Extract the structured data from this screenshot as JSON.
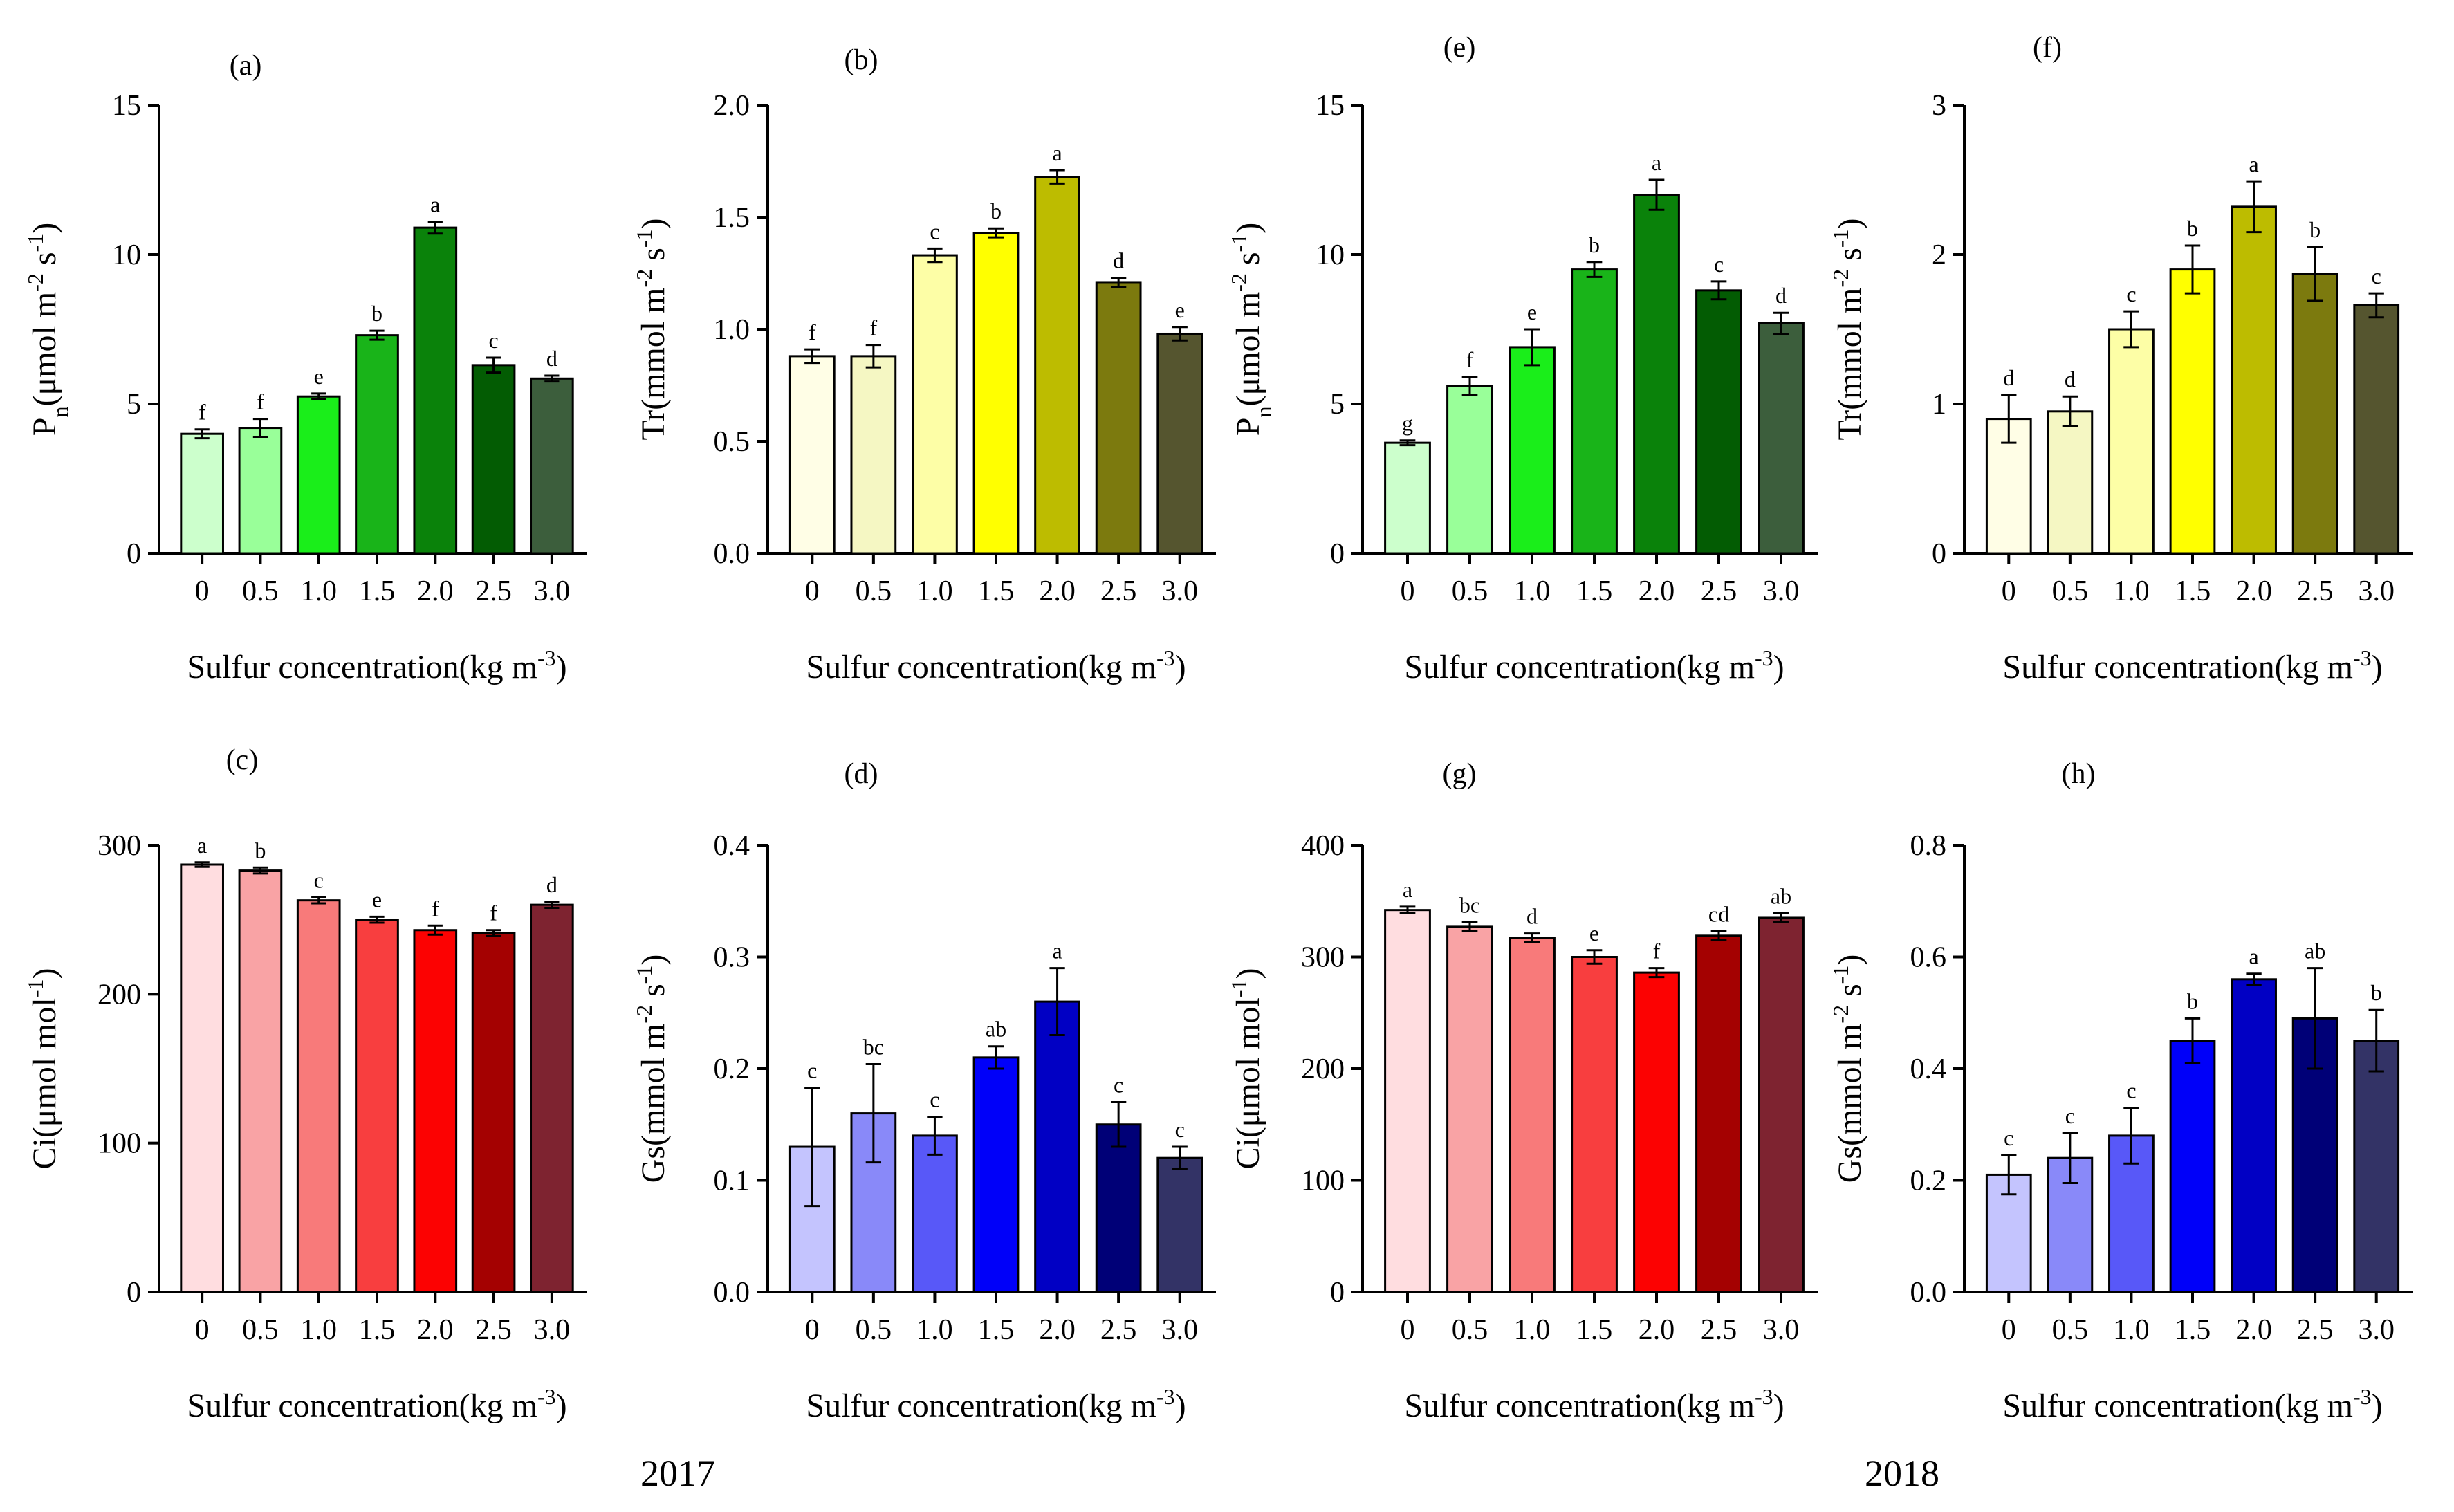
{
  "figure": {
    "year_labels": [
      "2017",
      "2018"
    ]
  },
  "chart_data": [
    {
      "id": "a",
      "panel_label": "(a)",
      "type": "bar",
      "categories": [
        "0",
        "0.5",
        "1.0",
        "1.5",
        "2.0",
        "2.5",
        "3.0"
      ],
      "values": [
        4.0,
        4.2,
        5.25,
        7.3,
        10.9,
        6.3,
        5.85
      ],
      "errors": [
        0.15,
        0.3,
        0.1,
        0.15,
        0.2,
        0.25,
        0.1
      ],
      "letters": [
        "f",
        "f",
        "e",
        "b",
        "a",
        "c",
        "d"
      ],
      "colors": [
        "#ccffcc",
        "#99ff99",
        "#1aee1a",
        "#19b419",
        "#0a820a",
        "#035c03",
        "#3c5e3c"
      ],
      "ylabel_main": "P",
      "ylabel_sub": "n",
      "ylabel_rest": "(μmol m",
      "ylabel_sup1": "-2",
      "ylabel_mid": " s",
      "ylabel_sup2": "-1",
      "ylabel_end": ")",
      "xlabel_main": "Sulfur concentration(kg m",
      "xlabel_sup": "-3",
      "xlabel_end": ")",
      "ylim": [
        0,
        15
      ],
      "yticks": [
        "0",
        "5",
        "10",
        "15"
      ],
      "ytick_values": [
        0,
        5,
        10,
        15
      ]
    },
    {
      "id": "b",
      "panel_label": "(b)",
      "type": "bar",
      "categories": [
        "0",
        "0.5",
        "1.0",
        "1.5",
        "2.0",
        "2.5",
        "3.0"
      ],
      "values": [
        0.88,
        0.88,
        1.33,
        1.43,
        1.68,
        1.21,
        0.98
      ],
      "errors": [
        0.03,
        0.05,
        0.03,
        0.02,
        0.03,
        0.02,
        0.03
      ],
      "letters": [
        "f",
        "f",
        "c",
        "b",
        "a",
        "d",
        "e"
      ],
      "colors": [
        "#fffee6",
        "#f5f7c3",
        "#fdfea6",
        "#ffff00",
        "#bdbc00",
        "#7c7a0e",
        "#55552f"
      ],
      "ylabel_main": "Tr",
      "ylabel_sub": "",
      "ylabel_rest": "(mmol m",
      "ylabel_sup1": "-2",
      "ylabel_mid": " s",
      "ylabel_sup2": "-1",
      "ylabel_end": ")",
      "xlabel_main": "Sulfur concentration(kg m",
      "xlabel_sup": "-3",
      "xlabel_end": ")",
      "ylim": [
        0,
        2.0
      ],
      "yticks": [
        "0.0",
        "0.5",
        "1.0",
        "1.5",
        "2.0"
      ],
      "ytick_values": [
        0,
        0.5,
        1.0,
        1.5,
        2.0
      ]
    },
    {
      "id": "e",
      "panel_label": "(e)",
      "type": "bar",
      "categories": [
        "0",
        "0.5",
        "1.0",
        "1.5",
        "2.0",
        "2.5",
        "3.0"
      ],
      "values": [
        3.7,
        5.6,
        6.9,
        9.5,
        12.0,
        8.8,
        7.7
      ],
      "errors": [
        0.08,
        0.3,
        0.6,
        0.25,
        0.5,
        0.3,
        0.35
      ],
      "letters": [
        "g",
        "f",
        "e",
        "b",
        "a",
        "c",
        "d"
      ],
      "colors": [
        "#ccffcc",
        "#99ff99",
        "#1aee1a",
        "#19b419",
        "#0a820a",
        "#035c03",
        "#3c5e3c"
      ],
      "ylabel_main": "P",
      "ylabel_sub": "n",
      "ylabel_rest": "(μmol m",
      "ylabel_sup1": "-2",
      "ylabel_mid": " s",
      "ylabel_sup2": "-1",
      "ylabel_end": ")",
      "xlabel_main": "Sulfur concentration(kg m",
      "xlabel_sup": "-3",
      "xlabel_end": ")",
      "ylim": [
        0,
        15
      ],
      "yticks": [
        "0",
        "5",
        "10",
        "15"
      ],
      "ytick_values": [
        0,
        5,
        10,
        15
      ]
    },
    {
      "id": "f",
      "panel_label": "(f)",
      "type": "bar",
      "categories": [
        "0",
        "0.5",
        "1.0",
        "1.5",
        "2.0",
        "2.5",
        "3.0"
      ],
      "values": [
        0.9,
        0.95,
        1.5,
        1.9,
        2.32,
        1.87,
        1.66
      ],
      "errors": [
        0.16,
        0.1,
        0.12,
        0.16,
        0.17,
        0.18,
        0.08
      ],
      "letters": [
        "d",
        "d",
        "c",
        "b",
        "a",
        "b",
        "c"
      ],
      "colors": [
        "#fffee6",
        "#f5f7c3",
        "#fdfea6",
        "#ffff00",
        "#bdbc00",
        "#7c7a0e",
        "#55552f"
      ],
      "ylabel_main": "Tr",
      "ylabel_sub": "",
      "ylabel_rest": "(mmol m",
      "ylabel_sup1": "-2",
      "ylabel_mid": " s",
      "ylabel_sup2": "-1",
      "ylabel_end": ")",
      "xlabel_main": "Sulfur concentration(kg m",
      "xlabel_sup": "-3",
      "xlabel_end": ")",
      "ylim": [
        0,
        3
      ],
      "yticks": [
        "0",
        "1",
        "2",
        "3"
      ],
      "ytick_values": [
        0,
        1,
        2,
        3
      ]
    },
    {
      "id": "c",
      "panel_label": "(c)",
      "type": "bar",
      "categories": [
        "0",
        "0.5",
        "1.0",
        "1.5",
        "2.0",
        "2.5",
        "3.0"
      ],
      "values": [
        287,
        283,
        263,
        250,
        243,
        241,
        260
      ],
      "errors": [
        1.5,
        2,
        2,
        2,
        3,
        2,
        2
      ],
      "letters": [
        "a",
        "b",
        "c",
        "e",
        "f",
        "f",
        "d"
      ],
      "colors": [
        "#ffdde0",
        "#f9a3a5",
        "#f87a7a",
        "#f83e3f",
        "#fc0202",
        "#a40101",
        "#7e2330"
      ],
      "ylabel_main": "Ci",
      "ylabel_sub": "",
      "ylabel_rest": "(μmol mol",
      "ylabel_sup1": "-1",
      "ylabel_mid": "",
      "ylabel_sup2": "",
      "ylabel_end": ")",
      "xlabel_main": "Sulfur concentration(kg m",
      "xlabel_sup": "-3",
      "xlabel_end": ")",
      "ylim": [
        0,
        300
      ],
      "yticks": [
        "0",
        "100",
        "200",
        "300"
      ],
      "ytick_values": [
        0,
        100,
        200,
        300
      ]
    },
    {
      "id": "d",
      "panel_label": "(d)",
      "type": "bar",
      "categories": [
        "0",
        "0.5",
        "1.0",
        "1.5",
        "2.0",
        "2.5",
        "3.0"
      ],
      "values": [
        0.13,
        0.16,
        0.14,
        0.21,
        0.26,
        0.15,
        0.12
      ],
      "errors": [
        0.053,
        0.044,
        0.017,
        0.01,
        0.03,
        0.02,
        0.01
      ],
      "letters": [
        "c",
        "bc",
        "c",
        "ab",
        "a",
        "c",
        "c"
      ],
      "colors": [
        "#c4c4fe",
        "#8989f9",
        "#5858f8",
        "#0000f9",
        "#0100c4",
        "#000077",
        "#333366"
      ],
      "ylabel_main": "Gs",
      "ylabel_sub": "",
      "ylabel_rest": "(mmol m",
      "ylabel_sup1": "-2",
      "ylabel_mid": " s",
      "ylabel_sup2": "-1",
      "ylabel_end": ")",
      "xlabel_main": "Sulfur concentration(kg m",
      "xlabel_sup": "-3",
      "xlabel_end": ")",
      "ylim": [
        0,
        0.4
      ],
      "yticks": [
        "0.0",
        "0.1",
        "0.2",
        "0.3",
        "0.4"
      ],
      "ytick_values": [
        0,
        0.1,
        0.2,
        0.3,
        0.4
      ]
    },
    {
      "id": "g",
      "panel_label": "(g)",
      "type": "bar",
      "categories": [
        "0",
        "0.5",
        "1.0",
        "1.5",
        "2.0",
        "2.5",
        "3.0"
      ],
      "values": [
        342,
        327,
        317,
        300,
        286,
        319,
        335
      ],
      "errors": [
        3,
        4,
        4,
        6,
        4,
        4,
        4
      ],
      "letters": [
        "a",
        "bc",
        "d",
        "e",
        "f",
        "cd",
        "ab"
      ],
      "colors": [
        "#ffdde0",
        "#f9a3a5",
        "#f87a7a",
        "#f83e3f",
        "#fc0202",
        "#a40101",
        "#7e2330"
      ],
      "ylabel_main": "Ci",
      "ylabel_sub": "",
      "ylabel_rest": "(μmol mol",
      "ylabel_sup1": "-1",
      "ylabel_mid": "",
      "ylabel_sup2": "",
      "ylabel_end": ")",
      "xlabel_main": "Sulfur concentration(kg m",
      "xlabel_sup": "-3",
      "xlabel_end": ")",
      "ylim": [
        0,
        400
      ],
      "yticks": [
        "0",
        "100",
        "200",
        "300",
        "400"
      ],
      "ytick_values": [
        0,
        100,
        200,
        300,
        400
      ]
    },
    {
      "id": "h",
      "panel_label": "(h)",
      "type": "bar",
      "categories": [
        "0",
        "0.5",
        "1.0",
        "1.5",
        "2.0",
        "2.5",
        "3.0"
      ],
      "values": [
        0.21,
        0.24,
        0.28,
        0.45,
        0.56,
        0.49,
        0.45
      ],
      "errors": [
        0.035,
        0.045,
        0.05,
        0.04,
        0.01,
        0.09,
        0.055
      ],
      "letters": [
        "c",
        "c",
        "c",
        "b",
        "a",
        "ab",
        "b"
      ],
      "colors": [
        "#c4c4fe",
        "#8989f9",
        "#5858f8",
        "#0000f9",
        "#0100c4",
        "#000077",
        "#333366"
      ],
      "ylabel_main": "Gs",
      "ylabel_sub": "",
      "ylabel_rest": "(mmol m",
      "ylabel_sup1": "-2",
      "ylabel_mid": " s",
      "ylabel_sup2": "-1",
      "ylabel_end": ")",
      "xlabel_main": "Sulfur concentration(kg m",
      "xlabel_sup": "-3",
      "xlabel_end": ")",
      "ylim": [
        0,
        0.8
      ],
      "yticks": [
        "0.0",
        "0.2",
        "0.4",
        "0.6",
        "0.8"
      ],
      "ytick_values": [
        0,
        0.2,
        0.4,
        0.6,
        0.8
      ]
    }
  ]
}
